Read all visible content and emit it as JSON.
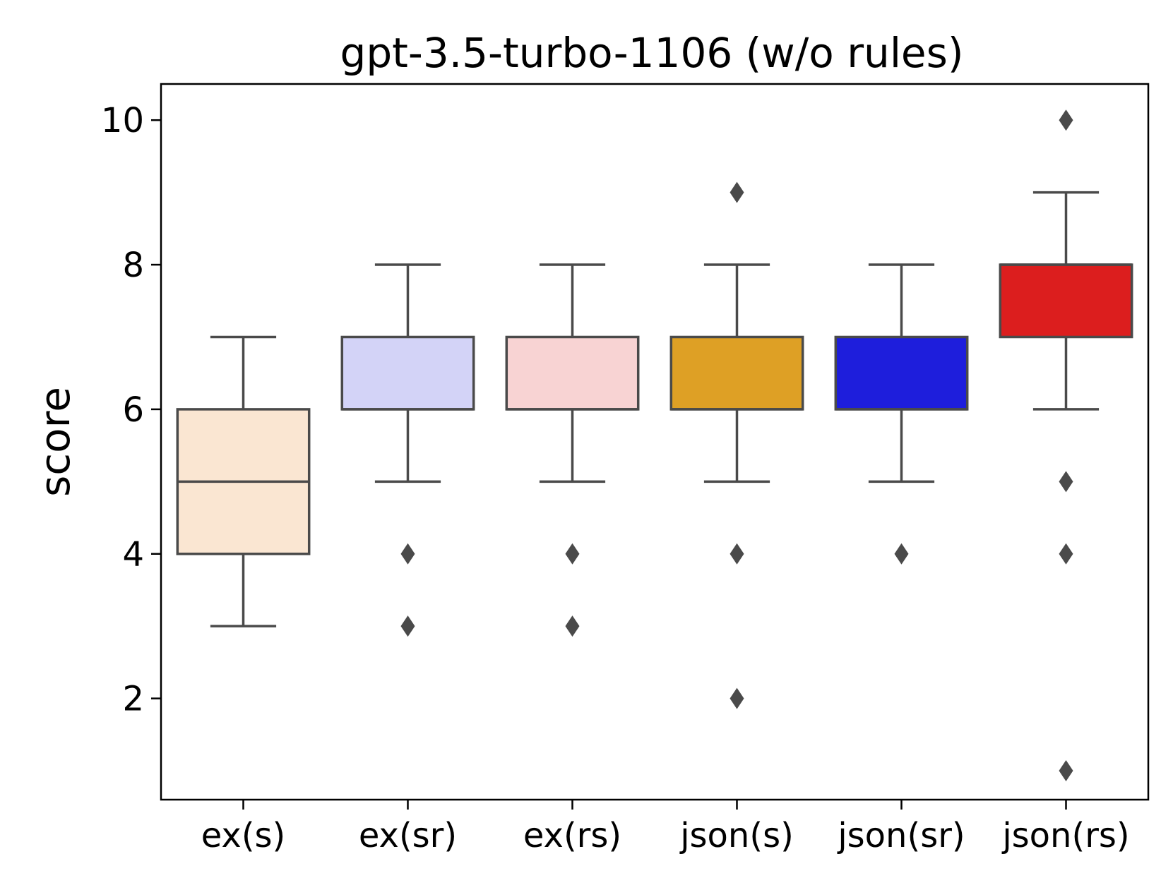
{
  "chart_data": {
    "type": "box",
    "title": "gpt-3.5-turbo-1106 (w/o rules)",
    "xlabel": "",
    "ylabel": "score",
    "ylim": [
      0.6,
      10.5
    ],
    "yticks": [
      2,
      4,
      6,
      8,
      10
    ],
    "yticks_labels": [
      "2",
      "4",
      "6",
      "8",
      "10"
    ],
    "grid": false,
    "legend": "none",
    "box_edge_color": "#4a4a4a",
    "categories": [
      "ex(s)",
      "ex(sr)",
      "ex(rs)",
      "json(s)",
      "json(sr)",
      "json(rs)"
    ],
    "series": [
      {
        "category": "ex(s)",
        "color": "#fae6d2",
        "whisker_low": 3,
        "q1": 4,
        "median": 5,
        "q3": 6,
        "whisker_high": 7,
        "outliers": []
      },
      {
        "category": "ex(sr)",
        "color": "#d3d3f7",
        "whisker_low": 5,
        "q1": 6,
        "median": 6,
        "q3": 7,
        "whisker_high": 8,
        "outliers": [
          4,
          3
        ]
      },
      {
        "category": "ex(rs)",
        "color": "#f8d3d3",
        "whisker_low": 5,
        "q1": 6,
        "median": 6,
        "q3": 7,
        "whisker_high": 8,
        "outliers": [
          4,
          3
        ]
      },
      {
        "category": "json(s)",
        "color": "#dea025",
        "whisker_low": 5,
        "q1": 6,
        "median": 6,
        "q3": 7,
        "whisker_high": 8,
        "outliers": [
          9,
          4,
          2
        ]
      },
      {
        "category": "json(sr)",
        "color": "#1e1edc",
        "whisker_low": 5,
        "q1": 6,
        "median": 6,
        "q3": 7,
        "whisker_high": 8,
        "outliers": [
          4
        ]
      },
      {
        "category": "json(rs)",
        "color": "#dc1e1e",
        "whisker_low": 6,
        "q1": 7,
        "median": 8,
        "q3": 8,
        "whisker_high": 9,
        "outliers": [
          10,
          5,
          4,
          1
        ]
      }
    ]
  }
}
